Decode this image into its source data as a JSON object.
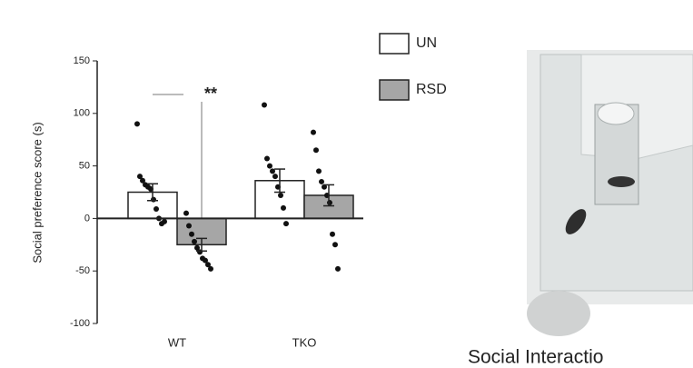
{
  "chart_data": {
    "type": "bar",
    "ylabel": "Social preference score (s)",
    "categories": [
      "WT",
      "TKO"
    ],
    "ylim": [
      -100,
      150
    ],
    "yticks": [
      -100,
      -50,
      0,
      50,
      100,
      150
    ],
    "series": [
      {
        "name": "UN",
        "color": "#ffffff",
        "values": [
          25,
          36
        ],
        "errors": [
          8,
          11
        ],
        "points": [
          [
            90,
            40,
            36,
            32,
            30,
            28,
            18,
            9,
            0,
            -5,
            -3
          ],
          [
            108,
            57,
            50,
            45,
            40,
            30,
            22,
            10,
            -5
          ]
        ]
      },
      {
        "name": "RSD",
        "color": "#a6a6a6",
        "values": [
          -25,
          22
        ],
        "errors": [
          6,
          10
        ],
        "points": [
          [
            5,
            -7,
            -15,
            -22,
            -28,
            -32,
            -38,
            -40,
            -44,
            -48
          ],
          [
            82,
            65,
            45,
            35,
            30,
            22,
            15,
            -15,
            -25,
            -48
          ]
        ]
      }
    ],
    "annotations": [
      {
        "text": "**"
      }
    ],
    "caption": "Social Interactio"
  }
}
